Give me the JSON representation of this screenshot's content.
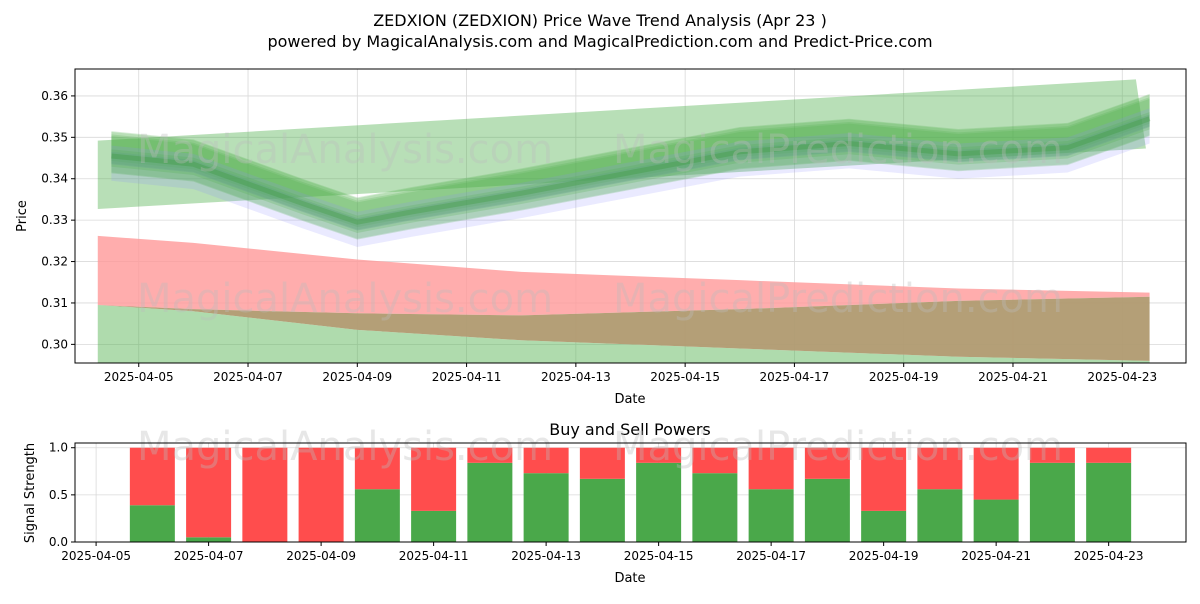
{
  "figure": {
    "title_line1": "ZEDXION (ZEDXION) Price Wave Trend Analysis (Apr 23 )",
    "title_line2": "powered by MagicalAnalysis.com and MagicalPrediction.com and Predict-Price.com",
    "watermarks": [
      "MagicalAnalysis.com",
      "MagicalPrediction.com"
    ]
  },
  "colors": {
    "buy": "#4aa84a",
    "sell": "#ff4d4d",
    "green_band": "#4daf4a",
    "red_band": "#ff9999",
    "overlap_band": "#b09a70",
    "blue_wave": "#8888ff"
  },
  "chart_data": [
    {
      "type": "area",
      "title": "",
      "xlabel": "Date",
      "ylabel": "Price",
      "ylim": [
        0.2955,
        0.3665
      ],
      "xlim": [
        "2025-04-03 20:00",
        "2025-04-24 04:00"
      ],
      "grid": true,
      "xticks": [
        "2025-04-05",
        "2025-04-07",
        "2025-04-09",
        "2025-04-11",
        "2025-04-13",
        "2025-04-15",
        "2025-04-17",
        "2025-04-19",
        "2025-04-21",
        "2025-04-23"
      ],
      "yticks": [
        "0.30",
        "0.31",
        "0.32",
        "0.33",
        "0.34",
        "0.35",
        "0.36"
      ],
      "series": [
        {
          "x": [
            "2025-04-04 12:00",
            "2025-04-06",
            "2025-04-08",
            "2025-04-09",
            "2025-04-10",
            "2025-04-12",
            "2025-04-14",
            "2025-04-16",
            "2025-04-18",
            "2025-04-20",
            "2025-04-22",
            "2025-04-23 12:00"
          ],
          "y": [
            0.3455,
            0.3435,
            0.334,
            0.3295,
            0.332,
            0.3365,
            0.3415,
            0.3465,
            0.3485,
            0.346,
            0.3475,
            0.3545
          ]
        },
        {
          "x": [
            "2025-04-04 06:00",
            "2025-04-23 06:00"
          ],
          "upper": [
            0.3492,
            0.364
          ],
          "lower": [
            0.3327,
            0.3473
          ]
        },
        {
          "x": [
            "2025-04-04 06:00",
            "2025-04-06",
            "2025-04-09",
            "2025-04-12",
            "2025-04-16",
            "2025-04-20",
            "2025-04-23 12:00"
          ],
          "upper": [
            0.3262,
            0.3245,
            0.3205,
            0.3175,
            0.3155,
            0.3135,
            0.3125
          ]
        },
        {
          "x": [
            "2025-04-04 06:00",
            "2025-04-06",
            "2025-04-09",
            "2025-04-12",
            "2025-04-16",
            "2025-04-20",
            "2025-04-23 12:00"
          ],
          "upper": [
            0.3095,
            0.3085,
            0.3075,
            0.307,
            0.3085,
            0.3105,
            0.3115
          ],
          "lower": [
            0.3095,
            0.308,
            0.3035,
            0.301,
            0.299,
            0.297,
            0.296
          ]
        }
      ]
    },
    {
      "type": "bar",
      "title": "Buy and Sell Powers",
      "xlabel": "Date",
      "ylabel": "Signal Strength",
      "ylim": [
        0,
        1.05
      ],
      "yticks": [
        "0.0",
        "0.5",
        "1.0"
      ],
      "xticks": [
        "2025-04-05",
        "2025-04-07",
        "2025-04-09",
        "2025-04-11",
        "2025-04-13",
        "2025-04-15",
        "2025-04-17",
        "2025-04-19",
        "2025-04-21",
        "2025-04-23"
      ],
      "categories": [
        "2025-04-06",
        "2025-04-07",
        "2025-04-08",
        "2025-04-09",
        "2025-04-10",
        "2025-04-11",
        "2025-04-12",
        "2025-04-13",
        "2025-04-14",
        "2025-04-15",
        "2025-04-16",
        "2025-04-17",
        "2025-04-18",
        "2025-04-19",
        "2025-04-20",
        "2025-04-21",
        "2025-04-22",
        "2025-04-23"
      ],
      "series": [
        {
          "values": [
            0.39,
            0.05,
            0.0,
            0.0,
            0.56,
            0.33,
            0.84,
            0.73,
            0.67,
            0.84,
            0.73,
            0.56,
            0.67,
            0.33,
            0.56,
            0.45,
            0.84,
            0.84
          ]
        },
        {
          "values": [
            0.61,
            0.95,
            1.0,
            1.0,
            0.44,
            0.67,
            0.16,
            0.27,
            0.33,
            0.16,
            0.27,
            0.44,
            0.33,
            0.67,
            0.44,
            0.55,
            0.16,
            0.16
          ]
        }
      ]
    }
  ]
}
